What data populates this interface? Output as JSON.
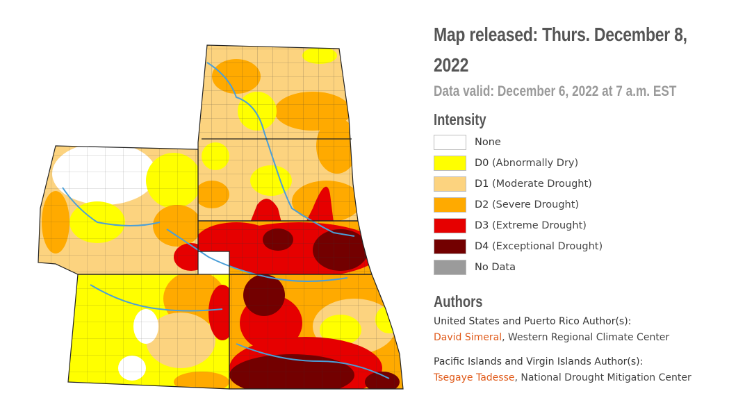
{
  "header": {
    "release_line1": "Map released: Thurs. December 8,",
    "release_line2": "2022",
    "data_valid": "Data valid: December 6, 2022 at 7 a.m. EST"
  },
  "legend": {
    "title": "Intensity",
    "items": [
      {
        "code": "None",
        "desc": "",
        "color": "#ffffff"
      },
      {
        "code": "D0",
        "desc": " (Abnormally Dry)",
        "color": "#ffff00"
      },
      {
        "code": "D1",
        "desc": " (Moderate Drought)",
        "color": "#fcd37f"
      },
      {
        "code": "D2",
        "desc": " (Severe Drought)",
        "color": "#ffaa00"
      },
      {
        "code": "D3",
        "desc": " (Extreme Drought)",
        "color": "#e60000"
      },
      {
        "code": "D4",
        "desc": " (Exceptional Drought)",
        "color": "#730000"
      },
      {
        "code": "No Data",
        "desc": "",
        "color": "#9b9b9b"
      }
    ]
  },
  "authors": {
    "title": "Authors",
    "groups": [
      {
        "heading": "United States and Puerto Rico Author(s):",
        "name": "David Simeral",
        "affiliation": ", Western Regional Climate Center"
      },
      {
        "heading": "Pacific Islands and Virgin Islands Author(s):",
        "name": "Tsegaye Tadesse",
        "affiliation": ", National Drought Mitigation Center"
      }
    ]
  },
  "map": {
    "region_colors": {
      "none": "#ffffff",
      "d0": "#ffff00",
      "d1": "#fcd37f",
      "d2": "#ffaa00",
      "d3": "#e60000",
      "d4": "#730000",
      "river": "#4a9fd8",
      "border": "#222222"
    }
  }
}
